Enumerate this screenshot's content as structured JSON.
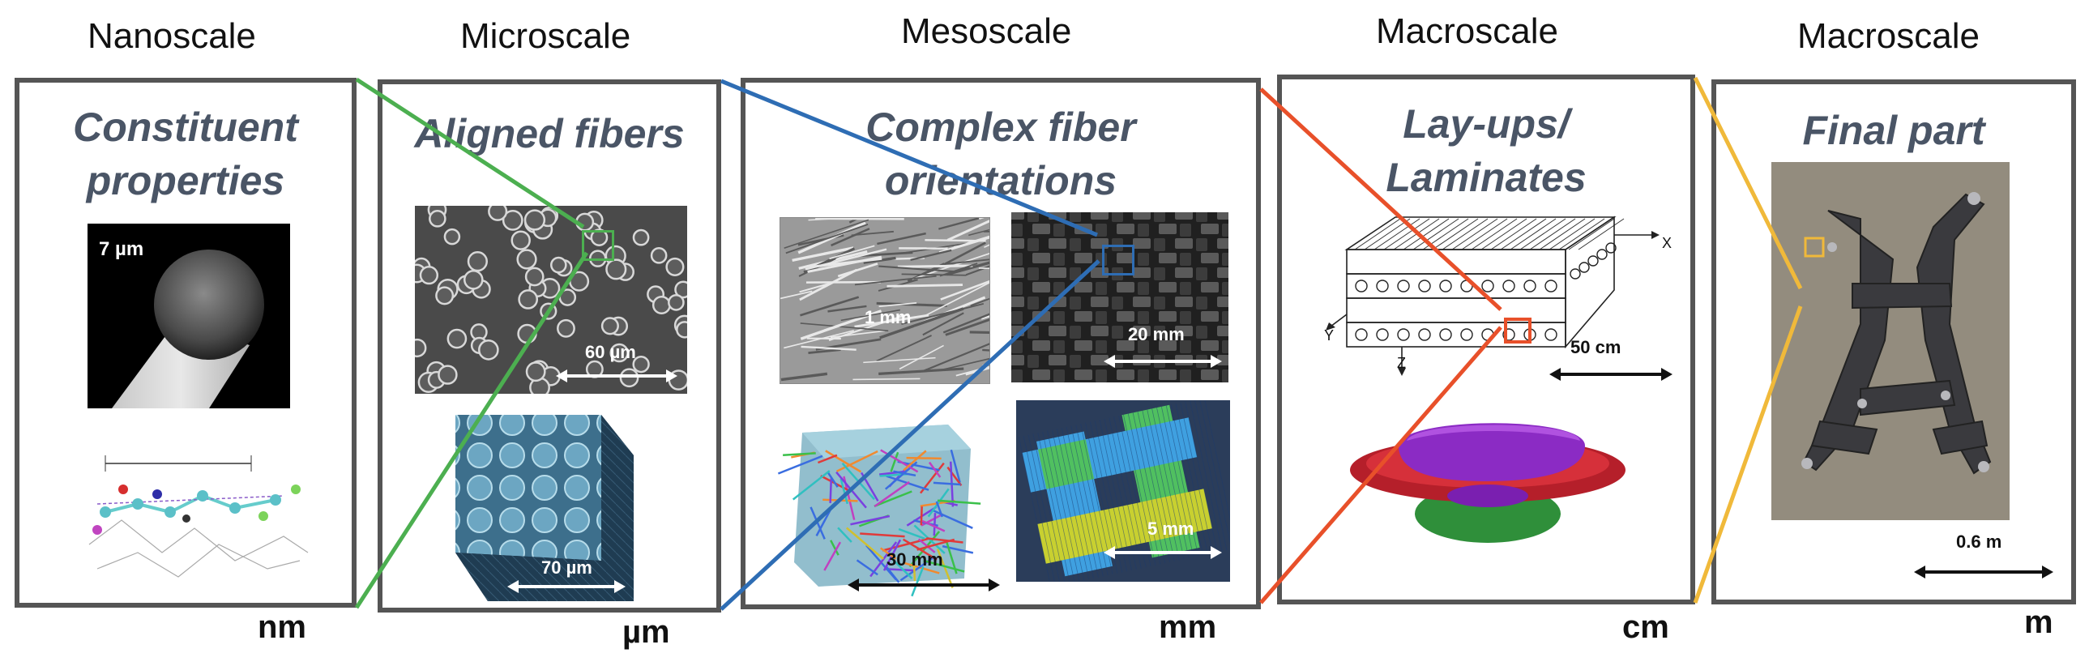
{
  "scales": [
    {
      "heading": "Nanoscale",
      "panel_title_1": "Constituent",
      "panel_title_2": "properties",
      "unit": "nm",
      "labels": [
        "7 µm"
      ]
    },
    {
      "heading": "Microscale",
      "panel_title_1": "Aligned fibers",
      "panel_title_2": "",
      "unit": "µm",
      "labels": [
        "60 µm",
        "70 µm"
      ]
    },
    {
      "heading": "Mesoscale",
      "panel_title_1": "Complex fiber",
      "panel_title_2": "orientations",
      "unit": "mm",
      "labels": [
        "1 mm",
        "20 mm",
        "30 mm",
        "5 mm"
      ]
    },
    {
      "heading": "Macroscale",
      "panel_title_1": "Lay-ups/",
      "panel_title_2": "Laminates",
      "unit": "cm",
      "labels": [
        "50 cm",
        "X",
        "Y",
        "Z"
      ]
    },
    {
      "heading": "Macroscale",
      "panel_title_1": "Final part",
      "panel_title_2": "",
      "unit": "m",
      "labels": [
        "0.6 m"
      ]
    }
  ],
  "colors": {
    "border": "#555555",
    "title_text": "#4a5566",
    "zoom_green": "#4caf50",
    "zoom_blue": "#2e6db4",
    "zoom_red": "#e8502a",
    "zoom_yellow": "#f0b93a"
  }
}
